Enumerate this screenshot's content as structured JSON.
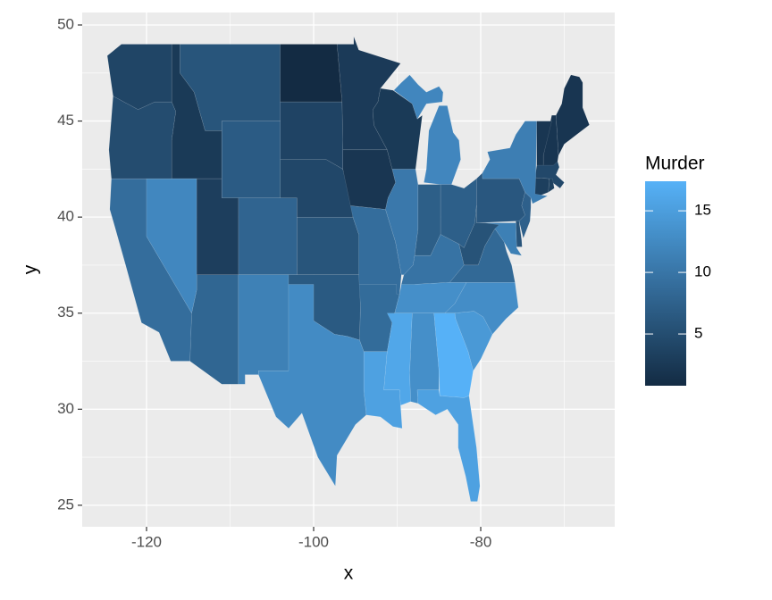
{
  "chart_data": {
    "type": "choropleth",
    "xlabel": "x",
    "ylabel": "y",
    "xlim": [
      -127.7,
      -63.96
    ],
    "ylim": [
      23.88,
      50.65
    ],
    "xticks": [
      -120,
      -100,
      -80
    ],
    "yticks": [
      25,
      30,
      35,
      40,
      45,
      50
    ],
    "grid": true,
    "values": [
      13.2,
      8.1,
      8.8,
      9.0,
      7.9,
      3.3,
      5.9,
      15.4,
      17.4,
      2.6,
      10.4,
      7.2,
      2.2,
      6.0,
      9.7,
      15.4,
      2.1,
      11.3,
      4.4,
      12.1,
      2.7,
      16.1,
      9.0,
      6.0,
      4.3,
      12.2,
      2.1,
      7.4,
      11.4,
      11.1,
      13.0,
      0.8,
      7.3,
      6.6,
      4.9,
      6.3,
      3.4,
      14.4,
      3.8,
      13.2,
      12.7,
      3.2,
      2.2,
      8.5,
      4.0,
      5.7,
      2.6,
      6.8
    ],
    "legend": {
      "title": "Murder",
      "limits": [
        0.8,
        17.4
      ],
      "ticks": [
        5,
        10,
        15
      ],
      "low": "#132B43",
      "high": "#56B1F7"
    }
  }
}
